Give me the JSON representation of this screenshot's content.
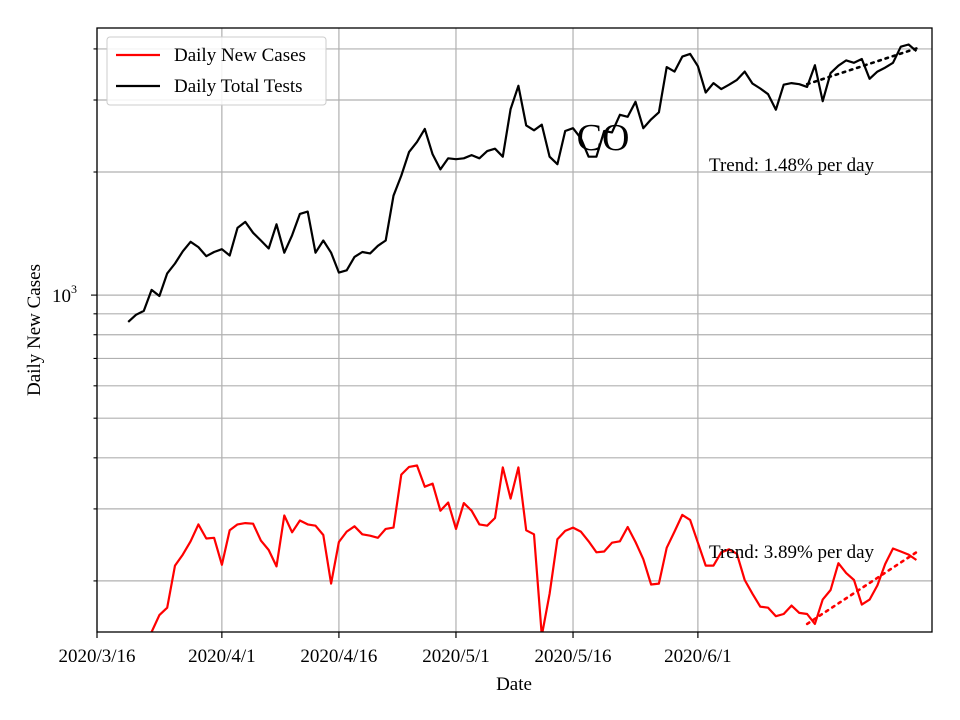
{
  "chart_data": {
    "type": "line",
    "yscale": "log",
    "ylabel": "Daily New Cases",
    "xlabel": "Date",
    "title": "CO",
    "x_ticks": [
      "2020/3/16",
      "2020/4/1",
      "2020/4/16",
      "2020/5/1",
      "2020/5/16",
      "2020/6/1"
    ],
    "y_tick_label": "10^3",
    "grid": true,
    "legend_position": "top-left",
    "series": [
      {
        "name": "Daily New Cases",
        "color": "#ff0000",
        "points": [
          [
            "2020-03-23",
            150
          ],
          [
            "2020-03-24",
            165
          ],
          [
            "2020-03-25",
            172
          ],
          [
            "2020-03-26",
            218
          ],
          [
            "2020-03-27",
            232
          ],
          [
            "2020-03-28",
            250
          ],
          [
            "2020-03-29",
            275
          ],
          [
            "2020-03-30",
            254
          ],
          [
            "2020-03-31",
            255
          ],
          [
            "2020-04-01",
            219
          ],
          [
            "2020-04-02",
            266
          ],
          [
            "2020-04-03",
            275
          ],
          [
            "2020-04-04",
            277
          ],
          [
            "2020-04-05",
            276
          ],
          [
            "2020-04-06",
            251
          ],
          [
            "2020-04-07",
            238
          ],
          [
            "2020-04-08",
            217
          ],
          [
            "2020-04-09",
            289
          ],
          [
            "2020-04-10",
            263
          ],
          [
            "2020-04-11",
            281
          ],
          [
            "2020-04-12",
            275
          ],
          [
            "2020-04-13",
            273
          ],
          [
            "2020-04-14",
            259
          ],
          [
            "2020-04-15",
            197
          ],
          [
            "2020-04-16",
            249
          ],
          [
            "2020-04-17",
            264
          ],
          [
            "2020-04-18",
            272
          ],
          [
            "2020-04-19",
            260
          ],
          [
            "2020-04-20",
            258
          ],
          [
            "2020-04-21",
            255
          ],
          [
            "2020-04-22",
            268
          ],
          [
            "2020-04-23",
            270
          ],
          [
            "2020-04-24",
            364
          ],
          [
            "2020-04-25",
            380
          ],
          [
            "2020-04-26",
            383
          ],
          [
            "2020-04-27",
            340
          ],
          [
            "2020-04-28",
            346
          ],
          [
            "2020-04-29",
            297
          ],
          [
            "2020-04-30",
            311
          ],
          [
            "2020-05-01",
            268
          ],
          [
            "2020-05-02",
            310
          ],
          [
            "2020-05-03",
            297
          ],
          [
            "2020-05-04",
            275
          ],
          [
            "2020-05-05",
            273
          ],
          [
            "2020-05-06",
            285
          ],
          [
            "2020-05-07",
            379
          ],
          [
            "2020-05-08",
            318
          ],
          [
            "2020-05-09",
            379
          ],
          [
            "2020-05-10",
            266
          ],
          [
            "2020-05-11",
            260
          ],
          [
            "2020-05-12",
            147
          ],
          [
            "2020-05-13",
            186
          ],
          [
            "2020-05-14",
            253
          ],
          [
            "2020-05-15",
            265
          ],
          [
            "2020-05-16",
            270
          ],
          [
            "2020-05-17",
            264
          ],
          [
            "2020-05-18",
            250
          ],
          [
            "2020-05-19",
            235
          ],
          [
            "2020-05-20",
            236
          ],
          [
            "2020-05-21",
            248
          ],
          [
            "2020-05-22",
            250
          ],
          [
            "2020-05-23",
            271
          ],
          [
            "2020-05-24",
            249
          ],
          [
            "2020-05-25",
            226
          ],
          [
            "2020-05-26",
            196
          ],
          [
            "2020-05-27",
            197
          ],
          [
            "2020-05-28",
            241
          ],
          [
            "2020-05-29",
            264
          ],
          [
            "2020-05-30",
            290
          ],
          [
            "2020-05-31",
            282
          ],
          [
            "2020-06-01",
            248
          ],
          [
            "2020-06-02",
            218
          ],
          [
            "2020-06-03",
            218
          ],
          [
            "2020-06-04",
            235
          ],
          [
            "2020-06-05",
            239
          ],
          [
            "2020-06-06",
            233
          ],
          [
            "2020-06-07",
            201
          ],
          [
            "2020-06-08",
            186
          ],
          [
            "2020-06-09",
            173
          ],
          [
            "2020-06-10",
            172
          ],
          [
            "2020-06-11",
            164
          ],
          [
            "2020-06-12",
            166
          ],
          [
            "2020-06-13",
            174
          ],
          [
            "2020-06-14",
            167
          ],
          [
            "2020-06-15",
            166
          ],
          [
            "2020-06-16",
            157
          ],
          [
            "2020-06-17",
            180
          ],
          [
            "2020-06-18",
            190
          ],
          [
            "2020-06-19",
            221
          ],
          [
            "2020-06-20",
            209
          ],
          [
            "2020-06-21",
            201
          ],
          [
            "2020-06-22",
            175
          ],
          [
            "2020-06-23",
            180
          ],
          [
            "2020-06-24",
            195
          ],
          [
            "2020-06-25",
            220
          ],
          [
            "2020-06-26",
            240
          ],
          [
            "2020-06-27",
            236
          ],
          [
            "2020-06-28",
            232
          ],
          [
            "2020-06-29",
            225
          ]
        ]
      },
      {
        "name": "Daily Total Tests",
        "color": "#000000",
        "points": [
          [
            "2020-03-20",
            860
          ],
          [
            "2020-03-21",
            895
          ],
          [
            "2020-03-22",
            915
          ],
          [
            "2020-03-23",
            1030
          ],
          [
            "2020-03-24",
            995
          ],
          [
            "2020-03-25",
            1130
          ],
          [
            "2020-03-26",
            1195
          ],
          [
            "2020-03-27",
            1280
          ],
          [
            "2020-03-28",
            1350
          ],
          [
            "2020-03-29",
            1310
          ],
          [
            "2020-03-30",
            1245
          ],
          [
            "2020-03-31",
            1275
          ],
          [
            "2020-04-01",
            1295
          ],
          [
            "2020-04-02",
            1250
          ],
          [
            "2020-04-03",
            1460
          ],
          [
            "2020-04-04",
            1510
          ],
          [
            "2020-04-05",
            1420
          ],
          [
            "2020-04-06",
            1360
          ],
          [
            "2020-04-07",
            1300
          ],
          [
            "2020-04-08",
            1490
          ],
          [
            "2020-04-09",
            1270
          ],
          [
            "2020-04-10",
            1400
          ],
          [
            "2020-04-11",
            1580
          ],
          [
            "2020-04-12",
            1600
          ],
          [
            "2020-04-13",
            1270
          ],
          [
            "2020-04-14",
            1360
          ],
          [
            "2020-04-15",
            1270
          ],
          [
            "2020-04-16",
            1135
          ],
          [
            "2020-04-17",
            1150
          ],
          [
            "2020-04-18",
            1240
          ],
          [
            "2020-04-19",
            1275
          ],
          [
            "2020-04-20",
            1265
          ],
          [
            "2020-04-21",
            1320
          ],
          [
            "2020-04-22",
            1360
          ],
          [
            "2020-04-23",
            1750
          ],
          [
            "2020-04-24",
            1960
          ],
          [
            "2020-04-25",
            2240
          ],
          [
            "2020-04-26",
            2370
          ],
          [
            "2020-04-27",
            2550
          ],
          [
            "2020-04-28",
            2210
          ],
          [
            "2020-04-29",
            2030
          ],
          [
            "2020-04-30",
            2160
          ],
          [
            "2020-05-01",
            2150
          ],
          [
            "2020-05-02",
            2160
          ],
          [
            "2020-05-03",
            2200
          ],
          [
            "2020-05-04",
            2160
          ],
          [
            "2020-05-05",
            2250
          ],
          [
            "2020-05-06",
            2280
          ],
          [
            "2020-05-07",
            2180
          ],
          [
            "2020-05-08",
            2850
          ],
          [
            "2020-05-09",
            3250
          ],
          [
            "2020-05-10",
            2600
          ],
          [
            "2020-05-11",
            2530
          ],
          [
            "2020-05-12",
            2610
          ],
          [
            "2020-05-13",
            2180
          ],
          [
            "2020-05-14",
            2090
          ],
          [
            "2020-05-15",
            2520
          ],
          [
            "2020-05-16",
            2560
          ],
          [
            "2020-05-17",
            2420
          ],
          [
            "2020-05-18",
            2180
          ],
          [
            "2020-05-19",
            2180
          ],
          [
            "2020-05-20",
            2520
          ],
          [
            "2020-05-21",
            2500
          ],
          [
            "2020-05-22",
            2760
          ],
          [
            "2020-05-23",
            2730
          ],
          [
            "2020-05-24",
            2970
          ],
          [
            "2020-05-25",
            2560
          ],
          [
            "2020-05-26",
            2690
          ],
          [
            "2020-05-27",
            2800
          ],
          [
            "2020-05-28",
            3610
          ],
          [
            "2020-05-29",
            3520
          ],
          [
            "2020-05-30",
            3830
          ],
          [
            "2020-05-31",
            3890
          ],
          [
            "2020-06-01",
            3630
          ],
          [
            "2020-06-02",
            3130
          ],
          [
            "2020-06-03",
            3300
          ],
          [
            "2020-06-04",
            3190
          ],
          [
            "2020-06-05",
            3270
          ],
          [
            "2020-06-06",
            3360
          ],
          [
            "2020-06-07",
            3520
          ],
          [
            "2020-06-08",
            3290
          ],
          [
            "2020-06-09",
            3200
          ],
          [
            "2020-06-10",
            3100
          ],
          [
            "2020-06-11",
            2840
          ],
          [
            "2020-06-12",
            3270
          ],
          [
            "2020-06-13",
            3300
          ],
          [
            "2020-06-14",
            3280
          ],
          [
            "2020-06-15",
            3230
          ],
          [
            "2020-06-16",
            3650
          ],
          [
            "2020-06-17",
            2980
          ],
          [
            "2020-06-18",
            3490
          ],
          [
            "2020-06-19",
            3640
          ],
          [
            "2020-06-20",
            3750
          ],
          [
            "2020-06-21",
            3700
          ],
          [
            "2020-06-22",
            3780
          ],
          [
            "2020-06-23",
            3380
          ],
          [
            "2020-06-24",
            3520
          ],
          [
            "2020-06-25",
            3600
          ],
          [
            "2020-06-26",
            3700
          ],
          [
            "2020-06-27",
            4050
          ],
          [
            "2020-06-28",
            4100
          ],
          [
            "2020-06-29",
            3950
          ]
        ]
      }
    ],
    "trends": [
      {
        "series": "Daily New Cases",
        "color": "#ff0000",
        "start": [
          "2020-06-15",
          157
        ],
        "end": [
          "2020-06-29",
          235
        ],
        "label": "Trend: 3.89% per day"
      },
      {
        "series": "Daily Total Tests",
        "color": "#000000",
        "start": [
          "2020-06-15",
          3280
        ],
        "end": [
          "2020-06-29",
          4010
        ],
        "label": "Trend: 1.48% per day"
      }
    ]
  }
}
